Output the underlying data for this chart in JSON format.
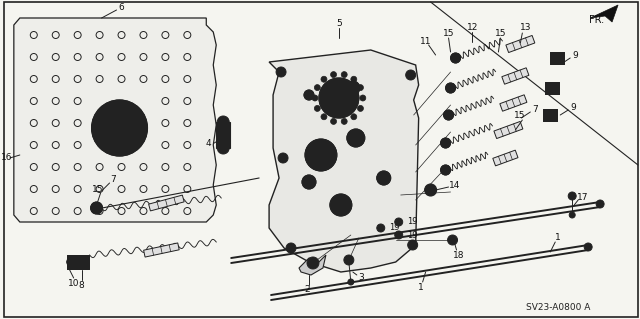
{
  "background_color": "#f5f5f0",
  "diagram_color": "#222222",
  "figsize": [
    6.4,
    3.19
  ],
  "dpi": 100,
  "diagram_code": "SV23-A0800 A"
}
